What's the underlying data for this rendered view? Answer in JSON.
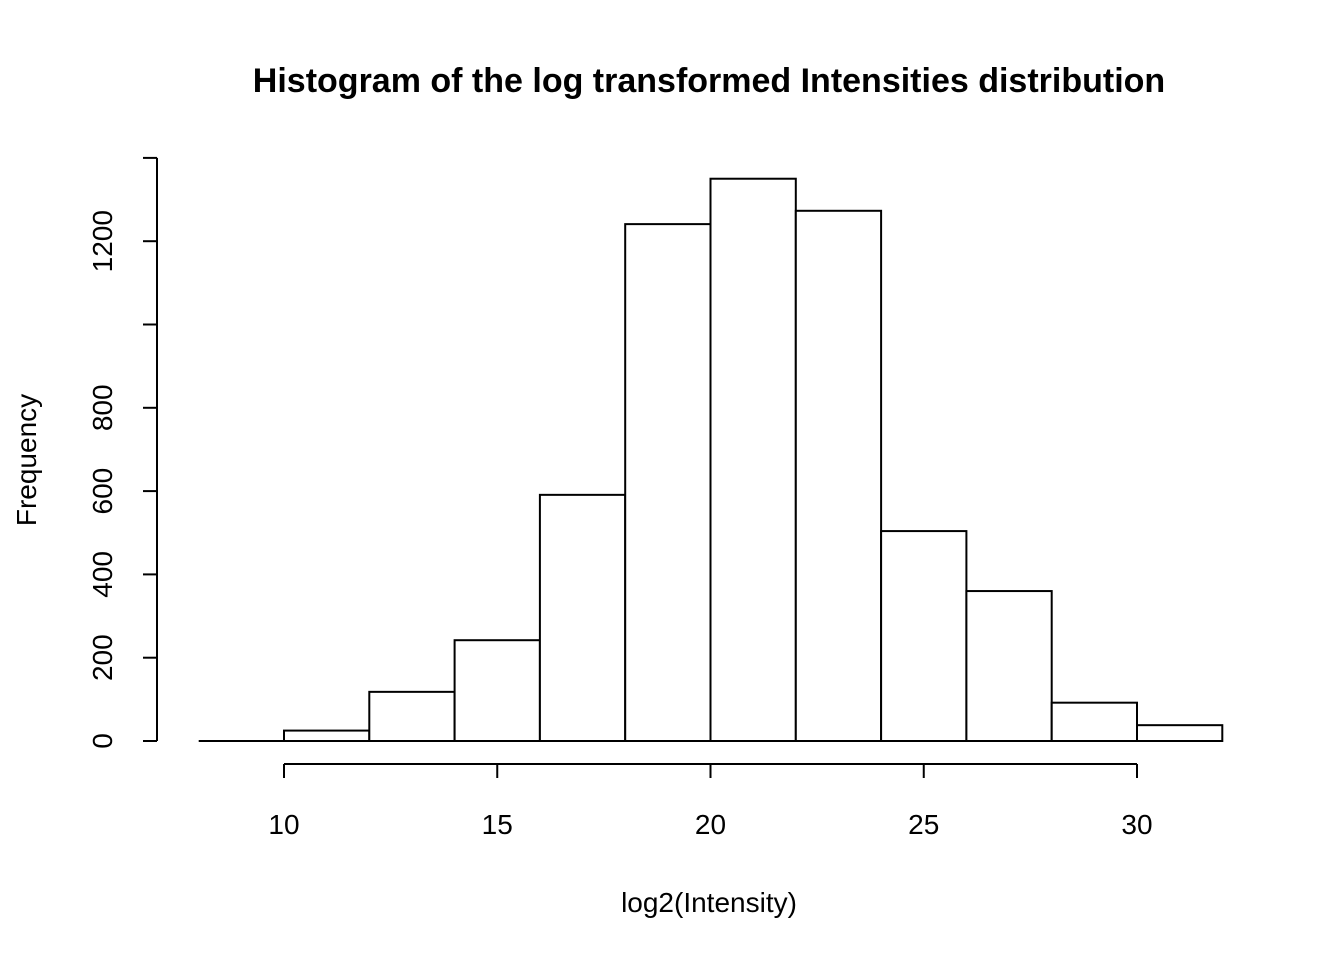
{
  "chart_data": {
    "type": "bar",
    "title": "Histogram of the log transformed Intensities distribution",
    "xlabel": "log2(Intensity)",
    "ylabel": "Frequency",
    "bins": [
      {
        "start": 8,
        "end": 10,
        "count": 0
      },
      {
        "start": 10,
        "end": 12,
        "count": 25
      },
      {
        "start": 12,
        "end": 14,
        "count": 118
      },
      {
        "start": 14,
        "end": 16,
        "count": 242
      },
      {
        "start": 16,
        "end": 18,
        "count": 591
      },
      {
        "start": 18,
        "end": 20,
        "count": 1241
      },
      {
        "start": 20,
        "end": 22,
        "count": 1350
      },
      {
        "start": 22,
        "end": 24,
        "count": 1273
      },
      {
        "start": 24,
        "end": 26,
        "count": 504
      },
      {
        "start": 26,
        "end": 28,
        "count": 360
      },
      {
        "start": 28,
        "end": 30,
        "count": 92
      },
      {
        "start": 30,
        "end": 32,
        "count": 38
      }
    ],
    "x_ticks": [
      10,
      15,
      20,
      25,
      30
    ],
    "y_ticks": [
      0,
      200,
      400,
      600,
      800,
      1000,
      1200,
      1400
    ],
    "y_tick_labels": [
      "0",
      "200",
      "400",
      "600",
      "800",
      "",
      "1200",
      ""
    ],
    "xlim": [
      8,
      32
    ],
    "ylim": [
      0,
      1400
    ],
    "x_axis_range": [
      10,
      30
    ],
    "grid": false,
    "legend": "none"
  }
}
